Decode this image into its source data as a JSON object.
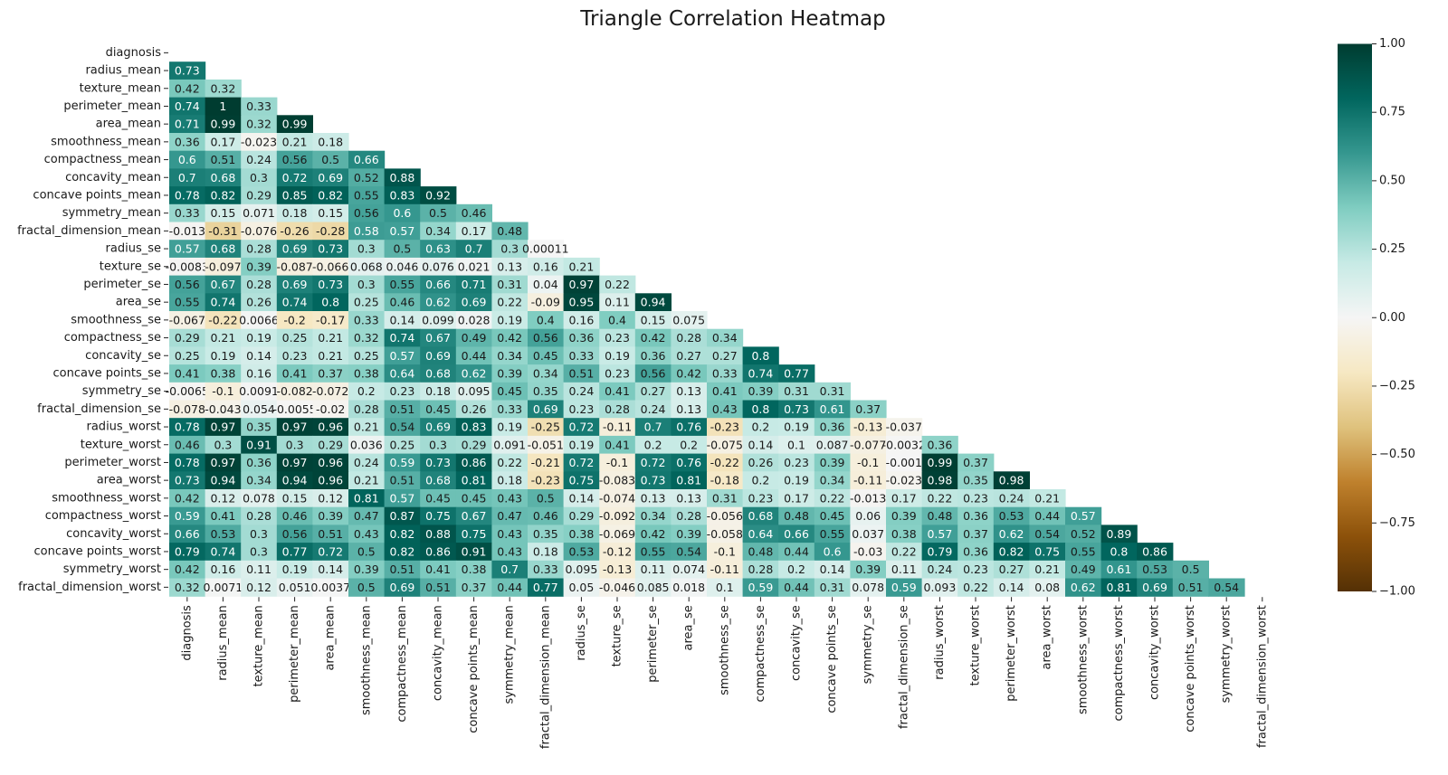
{
  "chart_data": {
    "type": "heatmap",
    "title": "Triangle Correlation Heatmap",
    "mask": "upper-triangle-including-diagonal",
    "colormap": "BrBG",
    "vmin": -1.0,
    "vmax": 1.0,
    "colorbar_ticks": [
      1.0,
      0.75,
      0.5,
      0.25,
      0.0,
      -0.25,
      -0.5,
      -0.75,
      -1.0
    ],
    "colorbar_tick_labels": [
      "1.00",
      "0.75",
      "0.50",
      "0.25",
      "0.00",
      "−0.25",
      "−0.50",
      "−0.75",
      "−1.00"
    ],
    "labels": [
      "diagnosis",
      "radius_mean",
      "texture_mean",
      "perimeter_mean",
      "area_mean",
      "smoothness_mean",
      "compactness_mean",
      "concavity_mean",
      "concave points_mean",
      "symmetry_mean",
      "fractal_dimension_mean",
      "radius_se",
      "texture_se",
      "perimeter_se",
      "area_se",
      "smoothness_se",
      "compactness_se",
      "concavity_se",
      "concave points_se",
      "symmetry_se",
      "fractal_dimension_se",
      "radius_worst",
      "texture_worst",
      "perimeter_worst",
      "area_worst",
      "smoothness_worst",
      "compactness_worst",
      "concavity_worst",
      "concave points_worst",
      "symmetry_worst",
      "fractal_dimension_worst"
    ],
    "rows": [
      [],
      [
        "0.73"
      ],
      [
        "0.42",
        "0.32"
      ],
      [
        "0.74",
        "1",
        "0.33"
      ],
      [
        "0.71",
        "0.99",
        "0.32",
        "0.99"
      ],
      [
        "0.36",
        "0.17",
        "-0.023",
        "0.21",
        "0.18"
      ],
      [
        "0.6",
        "0.51",
        "0.24",
        "0.56",
        "0.5",
        "0.66"
      ],
      [
        "0.7",
        "0.68",
        "0.3",
        "0.72",
        "0.69",
        "0.52",
        "0.88"
      ],
      [
        "0.78",
        "0.82",
        "0.29",
        "0.85",
        "0.82",
        "0.55",
        "0.83",
        "0.92"
      ],
      [
        "0.33",
        "0.15",
        "0.071",
        "0.18",
        "0.15",
        "0.56",
        "0.6",
        "0.5",
        "0.46"
      ],
      [
        "-0.013",
        "-0.31",
        "-0.076",
        "-0.26",
        "-0.28",
        "0.58",
        "0.57",
        "0.34",
        "0.17",
        "0.48"
      ],
      [
        "0.57",
        "0.68",
        "0.28",
        "0.69",
        "0.73",
        "0.3",
        "0.5",
        "0.63",
        "0.7",
        "0.3",
        "0.00011"
      ],
      [
        "-0.0083",
        "-0.097",
        "0.39",
        "-0.087",
        "-0.066",
        "0.068",
        "0.046",
        "0.076",
        "0.021",
        "0.13",
        "0.16",
        "0.21"
      ],
      [
        "0.56",
        "0.67",
        "0.28",
        "0.69",
        "0.73",
        "0.3",
        "0.55",
        "0.66",
        "0.71",
        "0.31",
        "0.04",
        "0.97",
        "0.22"
      ],
      [
        "0.55",
        "0.74",
        "0.26",
        "0.74",
        "0.8",
        "0.25",
        "0.46",
        "0.62",
        "0.69",
        "0.22",
        "-0.09",
        "0.95",
        "0.11",
        "0.94"
      ],
      [
        "-0.067",
        "-0.22",
        "0.0066",
        "-0.2",
        "-0.17",
        "0.33",
        "0.14",
        "0.099",
        "0.028",
        "0.19",
        "0.4",
        "0.16",
        "0.4",
        "0.15",
        "0.075"
      ],
      [
        "0.29",
        "0.21",
        "0.19",
        "0.25",
        "0.21",
        "0.32",
        "0.74",
        "0.67",
        "0.49",
        "0.42",
        "0.56",
        "0.36",
        "0.23",
        "0.42",
        "0.28",
        "0.34"
      ],
      [
        "0.25",
        "0.19",
        "0.14",
        "0.23",
        "0.21",
        "0.25",
        "0.57",
        "0.69",
        "0.44",
        "0.34",
        "0.45",
        "0.33",
        "0.19",
        "0.36",
        "0.27",
        "0.27",
        "0.8"
      ],
      [
        "0.41",
        "0.38",
        "0.16",
        "0.41",
        "0.37",
        "0.38",
        "0.64",
        "0.68",
        "0.62",
        "0.39",
        "0.34",
        "0.51",
        "0.23",
        "0.56",
        "0.42",
        "0.33",
        "0.74",
        "0.77"
      ],
      [
        "-0.0065",
        "-0.1",
        "0.0091",
        "-0.082",
        "-0.072",
        "0.2",
        "0.23",
        "0.18",
        "0.095",
        "0.45",
        "0.35",
        "0.24",
        "0.41",
        "0.27",
        "0.13",
        "0.41",
        "0.39",
        "0.31",
        "0.31"
      ],
      [
        "-0.078",
        "-0.043",
        "0.054",
        "-0.0055",
        "-0.02",
        "0.28",
        "0.51",
        "0.45",
        "0.26",
        "0.33",
        "0.69",
        "0.23",
        "0.28",
        "0.24",
        "0.13",
        "0.43",
        "0.8",
        "0.73",
        "0.61",
        "0.37"
      ],
      [
        "0.78",
        "0.97",
        "0.35",
        "0.97",
        "0.96",
        "0.21",
        "0.54",
        "0.69",
        "0.83",
        "0.19",
        "-0.25",
        "0.72",
        "-0.11",
        "0.7",
        "0.76",
        "-0.23",
        "0.2",
        "0.19",
        "0.36",
        "-0.13",
        "-0.037"
      ],
      [
        "0.46",
        "0.3",
        "0.91",
        "0.3",
        "0.29",
        "0.036",
        "0.25",
        "0.3",
        "0.29",
        "0.091",
        "-0.051",
        "0.19",
        "0.41",
        "0.2",
        "0.2",
        "-0.075",
        "0.14",
        "0.1",
        "0.087",
        "-0.077",
        "-0.0032",
        "0.36"
      ],
      [
        "0.78",
        "0.97",
        "0.36",
        "0.97",
        "0.96",
        "0.24",
        "0.59",
        "0.73",
        "0.86",
        "0.22",
        "-0.21",
        "0.72",
        "-0.1",
        "0.72",
        "0.76",
        "-0.22",
        "0.26",
        "0.23",
        "0.39",
        "-0.1",
        "-0.001",
        "0.99",
        "0.37"
      ],
      [
        "0.73",
        "0.94",
        "0.34",
        "0.94",
        "0.96",
        "0.21",
        "0.51",
        "0.68",
        "0.81",
        "0.18",
        "-0.23",
        "0.75",
        "-0.083",
        "0.73",
        "0.81",
        "-0.18",
        "0.2",
        "0.19",
        "0.34",
        "-0.11",
        "-0.023",
        "0.98",
        "0.35",
        "0.98"
      ],
      [
        "0.42",
        "0.12",
        "0.078",
        "0.15",
        "0.12",
        "0.81",
        "0.57",
        "0.45",
        "0.45",
        "0.43",
        "0.5",
        "0.14",
        "-0.074",
        "0.13",
        "0.13",
        "0.31",
        "0.23",
        "0.17",
        "0.22",
        "-0.013",
        "0.17",
        "0.22",
        "0.23",
        "0.24",
        "0.21"
      ],
      [
        "0.59",
        "0.41",
        "0.28",
        "0.46",
        "0.39",
        "0.47",
        "0.87",
        "0.75",
        "0.67",
        "0.47",
        "0.46",
        "0.29",
        "-0.092",
        "0.34",
        "0.28",
        "-0.056",
        "0.68",
        "0.48",
        "0.45",
        "0.06",
        "0.39",
        "0.48",
        "0.36",
        "0.53",
        "0.44",
        "0.57"
      ],
      [
        "0.66",
        "0.53",
        "0.3",
        "0.56",
        "0.51",
        "0.43",
        "0.82",
        "0.88",
        "0.75",
        "0.43",
        "0.35",
        "0.38",
        "-0.069",
        "0.42",
        "0.39",
        "-0.058",
        "0.64",
        "0.66",
        "0.55",
        "0.037",
        "0.38",
        "0.57",
        "0.37",
        "0.62",
        "0.54",
        "0.52",
        "0.89"
      ],
      [
        "0.79",
        "0.74",
        "0.3",
        "0.77",
        "0.72",
        "0.5",
        "0.82",
        "0.86",
        "0.91",
        "0.43",
        "0.18",
        "0.53",
        "-0.12",
        "0.55",
        "0.54",
        "-0.1",
        "0.48",
        "0.44",
        "0.6",
        "-0.03",
        "0.22",
        "0.79",
        "0.36",
        "0.82",
        "0.75",
        "0.55",
        "0.8",
        "0.86"
      ],
      [
        "0.42",
        "0.16",
        "0.11",
        "0.19",
        "0.14",
        "0.39",
        "0.51",
        "0.41",
        "0.38",
        "0.7",
        "0.33",
        "0.095",
        "-0.13",
        "0.11",
        "0.074",
        "-0.11",
        "0.28",
        "0.2",
        "0.14",
        "0.39",
        "0.11",
        "0.24",
        "0.23",
        "0.27",
        "0.21",
        "0.49",
        "0.61",
        "0.53",
        "0.5"
      ],
      [
        "0.32",
        "0.0071",
        "0.12",
        "0.051",
        "0.0037",
        "0.5",
        "0.69",
        "0.51",
        "0.37",
        "0.44",
        "0.77",
        "0.05",
        "-0.046",
        "0.085",
        "0.018",
        "0.1",
        "0.59",
        "0.44",
        "0.31",
        "0.078",
        "0.59",
        "0.093",
        "0.22",
        "0.14",
        "0.08",
        "0.62",
        "0.81",
        "0.69",
        "0.51",
        "0.54"
      ]
    ]
  }
}
